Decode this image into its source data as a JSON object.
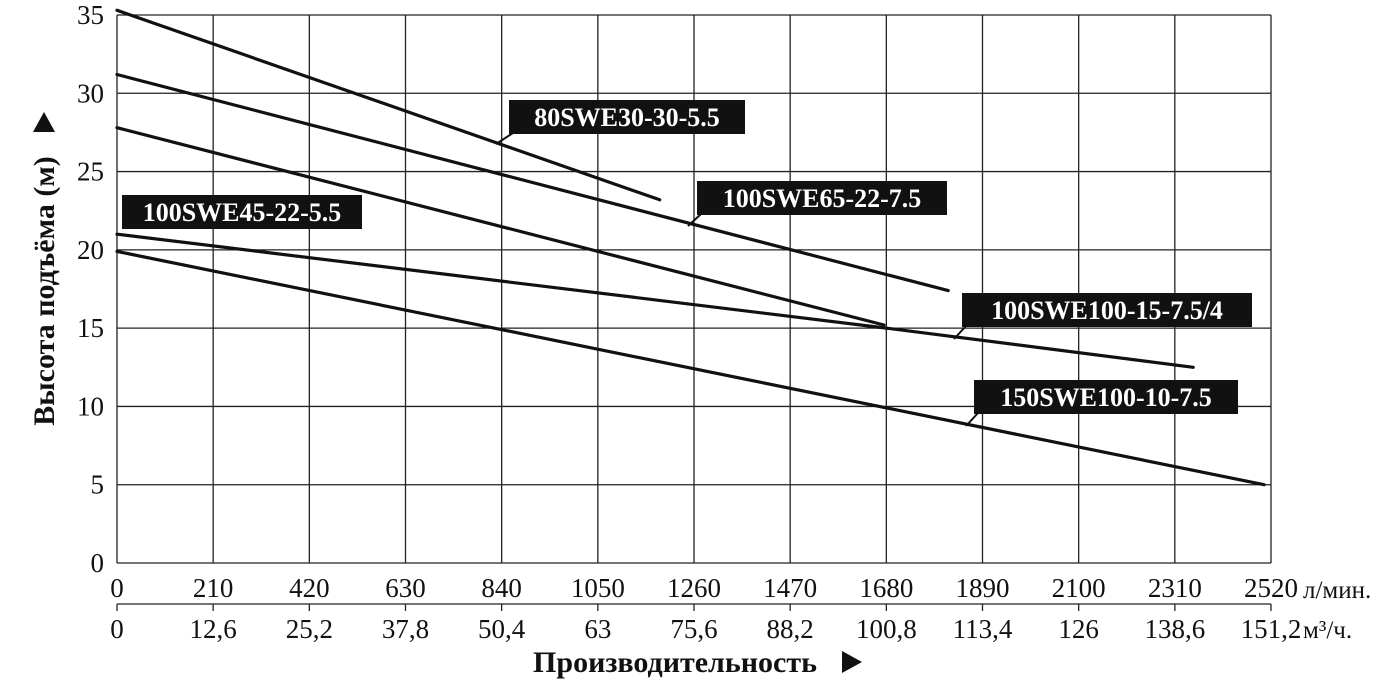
{
  "chart_data": {
    "type": "line",
    "ylabel": "Высота подъёма (м)",
    "xlabel": "Производительность",
    "xlim": [
      0,
      2520
    ],
    "ylim": [
      0,
      35
    ],
    "grid": true,
    "y_ticks": [
      "0",
      "5",
      "10",
      "15",
      "20",
      "25",
      "30",
      "35"
    ],
    "x_ticks_lmin": [
      "0",
      "210",
      "420",
      "630",
      "840",
      "1050",
      "1260",
      "1470",
      "1680",
      "1890",
      "2100",
      "2310",
      "2520"
    ],
    "x_unit_lmin": "л/мин.",
    "x_ticks_m3h": [
      "0",
      "12,6",
      "25,2",
      "37,8",
      "50,4",
      "63",
      "75,6",
      "88,2",
      "100,8",
      "113,4",
      "126",
      "138,6",
      "151,2"
    ],
    "x_unit_m3h": "м³/ч.",
    "series": [
      {
        "name": "80SWE30-30-5.5",
        "x": [
          0,
          1185
        ],
        "y": [
          35.3,
          23.2
        ]
      },
      {
        "name": "100SWE65-22-7.5",
        "x": [
          0,
          1815
        ],
        "y": [
          31.2,
          17.4
        ]
      },
      {
        "name": "100SWE45-22-5.5",
        "x": [
          0,
          1675
        ],
        "y": [
          27.8,
          15.2
        ]
      },
      {
        "name": "100SWE100-15-7.5/4",
        "x": [
          0,
          1680,
          2350
        ],
        "y": [
          21.0,
          15.0,
          12.5
        ]
      },
      {
        "name": "150SWE100-10-7.5",
        "x": [
          0,
          2505
        ],
        "y": [
          19.9,
          5.0
        ]
      }
    ]
  }
}
